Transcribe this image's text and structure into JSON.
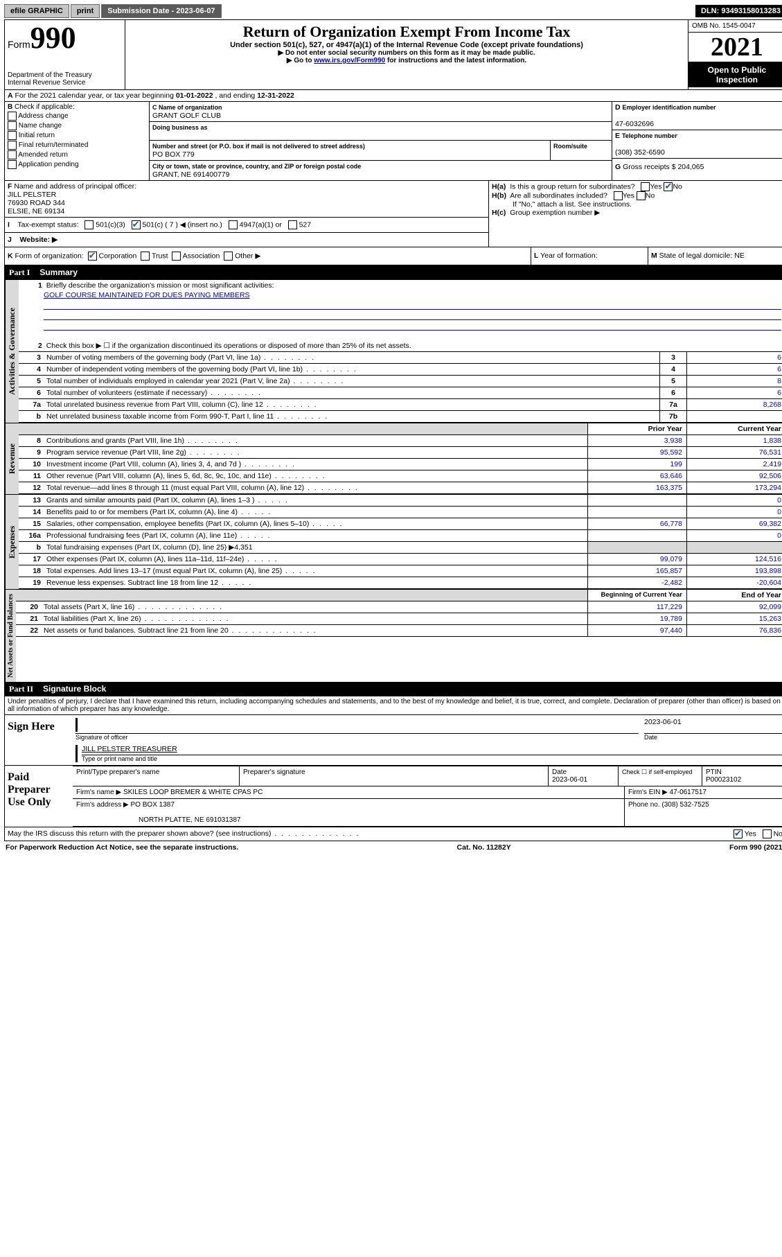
{
  "topbar": {
    "efile": "efile GRAPHIC",
    "print": "print",
    "submission_label": "Submission Date - ",
    "submission_date": "2023-06-07",
    "dln_label": "DLN: ",
    "dln": "93493158013283"
  },
  "header": {
    "form_word": "Form",
    "form_num": "990",
    "title": "Return of Organization Exempt From Income Tax",
    "sub": "Under section 501(c), 527, or 4947(a)(1) of the Internal Revenue Code (except private foundations)",
    "ssn": "▶ Do not enter social security numbers on this form as it may be made public.",
    "goto_pre": "▶ Go to ",
    "goto_link": "www.irs.gov/Form990",
    "goto_post": " for instructions and the latest information.",
    "dept": "Department of the Treasury",
    "irs": "Internal Revenue Service",
    "omb": "OMB No. 1545-0047",
    "year": "2021",
    "open1": "Open to Public",
    "open2": "Inspection"
  },
  "A": {
    "line": "For the 2021 calendar year, or tax year beginning ",
    "begin": "01-01-2022",
    "mid": " , and ending ",
    "end": "12-31-2022"
  },
  "B": {
    "label": "Check if applicable:",
    "opts": [
      "Address change",
      "Name change",
      "Initial return",
      "Final return/terminated",
      "Amended return",
      "Application pending"
    ]
  },
  "C": {
    "name_label": "Name of organization",
    "name": "GRANT GOLF CLUB",
    "dba_label": "Doing business as",
    "street_label": "Number and street (or P.O. box if mail is not delivered to street address)",
    "room_label": "Room/suite",
    "street": "PO BOX 779",
    "city_label": "City or town, state or province, country, and ZIP or foreign postal code",
    "city": "GRANT, NE  691400779"
  },
  "D": {
    "label": "Employer identification number",
    "val": "47-6032696"
  },
  "E": {
    "label": "Telephone number",
    "val": "(308) 352-6590"
  },
  "G": {
    "label": "Gross receipts $",
    "val": "204,065"
  },
  "F": {
    "label": "Name and address of principal officer:",
    "name": "JILL PELSTER",
    "addr1": "76930 ROAD 344",
    "addr2": "ELSIE, NE  69134"
  },
  "H": {
    "a": "Is this a group return for subordinates?",
    "b": "Are all subordinates included?",
    "b_note": "If \"No,\" attach a list. See instructions.",
    "c": "Group exemption number ▶"
  },
  "I": {
    "label": "Tax-exempt status:",
    "insert": "◀ (insert no.)"
  },
  "J": {
    "label": "Website: ▶"
  },
  "K": {
    "label": "Form of organization:",
    "opts": [
      "Corporation",
      "Trust",
      "Association",
      "Other ▶"
    ]
  },
  "L": {
    "label": "Year of formation:"
  },
  "M": {
    "label": "State of legal domicile: ",
    "val": "NE"
  },
  "part1": {
    "tag": "Part I",
    "title": "Summary"
  },
  "summary": {
    "s1_label": "Briefly describe the organization's mission or most significant activities:",
    "s1_text": "GOLF COURSE MAINTAINED FOR DUES PAYING MEMBERS",
    "s2": "Check this box ▶ ☐  if the organization discontinued its operations or disposed of more than 25% of its net assets.",
    "rows_gov": [
      {
        "n": "3",
        "d": "Number of voting members of the governing body (Part VI, line 1a)",
        "box": "3",
        "v": "6"
      },
      {
        "n": "4",
        "d": "Number of independent voting members of the governing body (Part VI, line 1b)",
        "box": "4",
        "v": "6"
      },
      {
        "n": "5",
        "d": "Total number of individuals employed in calendar year 2021 (Part V, line 2a)",
        "box": "5",
        "v": "8"
      },
      {
        "n": "6",
        "d": "Total number of volunteers (estimate if necessary)",
        "box": "6",
        "v": "6"
      },
      {
        "n": "7a",
        "d": "Total unrelated business revenue from Part VIII, column (C), line 12",
        "box": "7a",
        "v": "8,268"
      },
      {
        "n": "b",
        "d": "Net unrelated business taxable income from Form 990-T, Part I, line 11",
        "box": "7b",
        "v": ""
      }
    ],
    "col_prior": "Prior Year",
    "col_curr": "Current Year",
    "rows_rev": [
      {
        "n": "8",
        "d": "Contributions and grants (Part VIII, line 1h)",
        "p": "3,938",
        "c": "1,838"
      },
      {
        "n": "9",
        "d": "Program service revenue (Part VIII, line 2g)",
        "p": "95,592",
        "c": "76,531"
      },
      {
        "n": "10",
        "d": "Investment income (Part VIII, column (A), lines 3, 4, and 7d )",
        "p": "199",
        "c": "2,419"
      },
      {
        "n": "11",
        "d": "Other revenue (Part VIII, column (A), lines 5, 6d, 8c, 9c, 10c, and 11e)",
        "p": "63,646",
        "c": "92,506"
      },
      {
        "n": "12",
        "d": "Total revenue—add lines 8 through 11 (must equal Part VIII, column (A), line 12)",
        "p": "163,375",
        "c": "173,294"
      }
    ],
    "rows_exp": [
      {
        "n": "13",
        "d": "Grants and similar amounts paid (Part IX, column (A), lines 1–3 )",
        "p": "",
        "c": "0"
      },
      {
        "n": "14",
        "d": "Benefits paid to or for members (Part IX, column (A), line 4)",
        "p": "",
        "c": "0"
      },
      {
        "n": "15",
        "d": "Salaries, other compensation, employee benefits (Part IX, column (A), lines 5–10)",
        "p": "66,778",
        "c": "69,382"
      },
      {
        "n": "16a",
        "d": "Professional fundraising fees (Part IX, column (A), line 11e)",
        "p": "",
        "c": "0"
      }
    ],
    "row_16b": "Total fundraising expenses (Part IX, column (D), line 25) ▶4,351",
    "rows_exp2": [
      {
        "n": "17",
        "d": "Other expenses (Part IX, column (A), lines 11a–11d, 11f–24e)",
        "p": "99,079",
        "c": "124,516"
      },
      {
        "n": "18",
        "d": "Total expenses. Add lines 13–17 (must equal Part IX, column (A), line 25)",
        "p": "165,857",
        "c": "193,898"
      },
      {
        "n": "19",
        "d": "Revenue less expenses. Subtract line 18 from line 12",
        "p": "-2,482",
        "c": "-20,604"
      }
    ],
    "col_begin": "Beginning of Current Year",
    "col_end": "End of Year",
    "rows_net": [
      {
        "n": "20",
        "d": "Total assets (Part X, line 16)",
        "p": "117,229",
        "c": "92,099"
      },
      {
        "n": "21",
        "d": "Total liabilities (Part X, line 26)",
        "p": "19,789",
        "c": "15,263"
      },
      {
        "n": "22",
        "d": "Net assets or fund balances. Subtract line 21 from line 20",
        "p": "97,440",
        "c": "76,836"
      }
    ]
  },
  "vtabs": {
    "gov": "Activities & Governance",
    "rev": "Revenue",
    "exp": "Expenses",
    "net": "Net Assets or Fund Balances"
  },
  "part2": {
    "tag": "Part II",
    "title": "Signature Block"
  },
  "penalty": "Under penalties of perjury, I declare that I have examined this return, including accompanying schedules and statements, and to the best of my knowledge and belief, it is true, correct, and complete. Declaration of preparer (other than officer) is based on all information of which preparer has any knowledge.",
  "sign": {
    "here": "Sign Here",
    "sig_officer": "Signature of officer",
    "date": "Date",
    "date_val": "2023-06-01",
    "name_title": "JILL PELSTER TREASURER",
    "type_label": "Type or print name and title"
  },
  "paid": {
    "label": "Paid Preparer Use Only",
    "h": [
      "Print/Type preparer's name",
      "Preparer's signature",
      "Date",
      "",
      "PTIN"
    ],
    "date_val": "2023-06-01",
    "check_self": "Check ☐ if self-employed",
    "ptin": "P00023102",
    "firm_name_l": "Firm's name   ▶",
    "firm_name": "SKILES LOOP BREMER & WHITE CPAS PC",
    "firm_ein_l": "Firm's EIN ▶",
    "firm_ein": "47-0617517",
    "firm_addr_l": "Firm's address ▶",
    "firm_addr1": "PO BOX 1387",
    "firm_addr2": "NORTH PLATTE, NE  691031387",
    "phone_l": "Phone no.",
    "phone": "(308) 532-7525"
  },
  "may_irs": "May the IRS discuss this return with the preparer shown above? (see instructions)",
  "footer": {
    "pra": "For Paperwork Reduction Act Notice, see the separate instructions.",
    "cat": "Cat. No. 11282Y",
    "form": "Form 990 (2021)"
  },
  "yesno": {
    "yes": "Yes",
    "no": "No"
  }
}
